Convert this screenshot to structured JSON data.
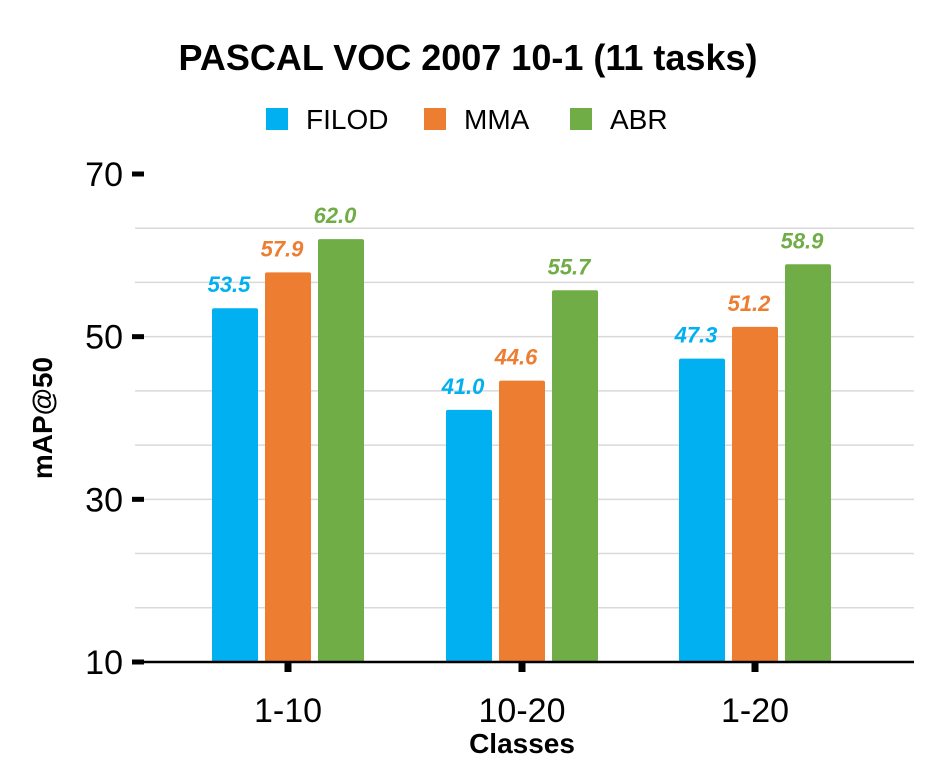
{
  "chart_data": {
    "type": "bar",
    "title": "PASCAL VOC 2007 10-1 (11 tasks)",
    "xlabel": "Classes",
    "ylabel": "mAP@50",
    "categories": [
      "1-10",
      "10-20",
      "1-20"
    ],
    "series": [
      {
        "name": "FILOD",
        "color": "#00B0F0",
        "values": [
          53.5,
          41.0,
          47.3
        ],
        "labels": [
          "53.5",
          "41.0",
          "47.3"
        ]
      },
      {
        "name": "MMA",
        "color": "#ED7D31",
        "values": [
          57.9,
          44.6,
          51.2
        ],
        "labels": [
          "57.9",
          "44.6",
          "51.2"
        ]
      },
      {
        "name": "ABR",
        "color": "#70AD47",
        "values": [
          62.0,
          55.7,
          58.9
        ],
        "labels": [
          "62.0",
          "55.7",
          "58.9"
        ]
      }
    ],
    "ylim": [
      10,
      70
    ],
    "yticks": [
      10,
      30,
      50,
      70
    ],
    "ytick_labels": [
      "10",
      "30",
      "50",
      "70"
    ],
    "grid_step": 6.667,
    "grid": true,
    "legend": "top-center"
  }
}
